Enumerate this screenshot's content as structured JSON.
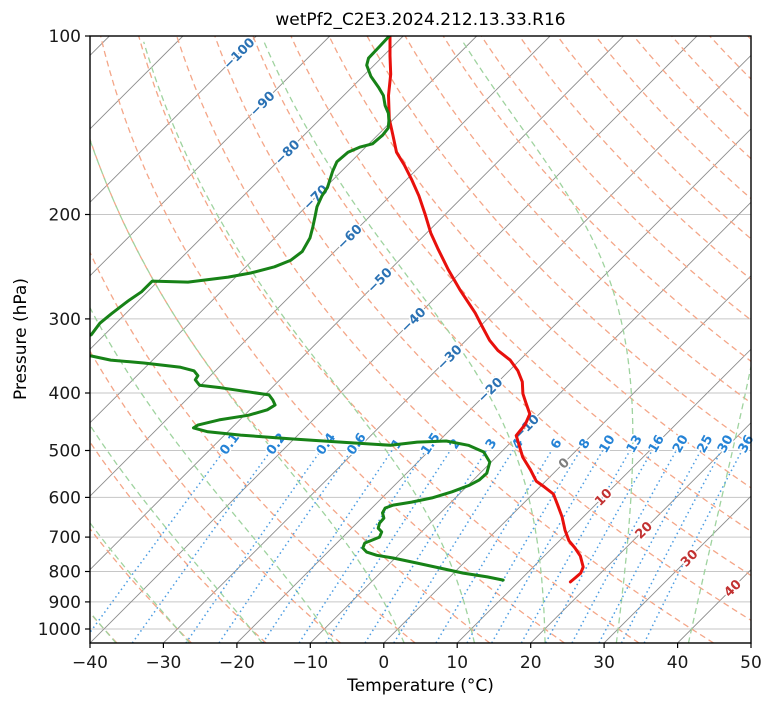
{
  "title": "wetPf2_C2E3.2024.212.13.33.R16",
  "axes": {
    "x_label": "Temperature (°C)",
    "y_label": "Pressure (hPa)",
    "x_ticks": [
      {
        "v": -40,
        "label": "−40"
      },
      {
        "v": -30,
        "label": "−30"
      },
      {
        "v": -20,
        "label": "−20"
      },
      {
        "v": -10,
        "label": "−10"
      },
      {
        "v": 0,
        "label": "0"
      },
      {
        "v": 10,
        "label": "10"
      },
      {
        "v": 20,
        "label": "20"
      },
      {
        "v": 30,
        "label": "30"
      },
      {
        "v": 40,
        "label": "40"
      },
      {
        "v": 50,
        "label": "50"
      }
    ],
    "y_ticks": [
      {
        "v": 100,
        "label": "100"
      },
      {
        "v": 200,
        "label": "200"
      },
      {
        "v": 300,
        "label": "300"
      },
      {
        "v": 400,
        "label": "400"
      },
      {
        "v": 500,
        "label": "500"
      },
      {
        "v": 600,
        "label": "600"
      },
      {
        "v": 700,
        "label": "700"
      },
      {
        "v": 800,
        "label": "800"
      },
      {
        "v": 900,
        "label": "900"
      },
      {
        "v": 1000,
        "label": "1000"
      }
    ]
  },
  "colors": {
    "temperature_line": "#e8100c",
    "dewpoint_line": "#178217",
    "isotherm_line": "#8c8c8c",
    "pressure_grid": "#c6c6c6",
    "dry_adiabat": "#f4a688",
    "moist_adiabat": "#9fd39f",
    "mixing_ratio_line": "#4b9ce2",
    "mixing_ratio_label": "#2583d6",
    "isotherm_label_cold": "#2b72b4",
    "isotherm_label_zero": "#7f7f7f",
    "isotherm_label_warm": "#c23232",
    "spine": "#000000",
    "tick_text": "#1a1a1a"
  },
  "chart_data": {
    "type": "line",
    "variant": "skew-T log-P thermodynamic diagram",
    "title": "wetPf2_C2E3.2024.212.13.33.R16",
    "xlabel": "Temperature (°C)",
    "ylabel": "Pressure (hPa)",
    "x_axis": {
      "min_c": -40,
      "max_c": 50,
      "tick_step_c": 10
    },
    "y_axis": {
      "scale": "log",
      "top_hpa": 100,
      "bottom_hpa": 1056,
      "ticks_hpa": [
        100,
        200,
        300,
        400,
        500,
        600,
        700,
        800,
        900,
        1000
      ]
    },
    "skew_deg": 45,
    "grid": true,
    "legend_position": "none",
    "background_lines": {
      "isotherms_c": {
        "min": -120,
        "max": 50,
        "step": 10
      },
      "dry_adiabats_theta_c": {
        "min": -40,
        "max": 190,
        "step": 10
      },
      "moist_adiabats_thetaw_c": {
        "min": -40,
        "max": 50,
        "step": 10
      },
      "mixing_ratio_g_kg": [
        0.1,
        0.2,
        0.4,
        0.6,
        1,
        1.5,
        2,
        3,
        4,
        6,
        8,
        10,
        13,
        16,
        20,
        25,
        30,
        36
      ],
      "mixing_ratio_top_hpa": 500
    },
    "line_labels": {
      "mixing_labels_at_hpa": 487,
      "isotherm_labels": [
        {
          "t_c": -100,
          "at_hpa": 107
        },
        {
          "t_c": -90,
          "at_hpa": 130
        },
        {
          "t_c": -80,
          "at_hpa": 157
        },
        {
          "t_c": -70,
          "at_hpa": 187
        },
        {
          "t_c": -60,
          "at_hpa": 218
        },
        {
          "t_c": -50,
          "at_hpa": 258
        },
        {
          "t_c": -40,
          "at_hpa": 301
        },
        {
          "t_c": -30,
          "at_hpa": 348
        },
        {
          "t_c": -20,
          "at_hpa": 395
        },
        {
          "t_c": -10,
          "at_hpa": 456
        },
        {
          "t_c": 0,
          "at_hpa": 525
        },
        {
          "t_c": 10,
          "at_hpa": 599
        },
        {
          "t_c": 20,
          "at_hpa": 681
        },
        {
          "t_c": 30,
          "at_hpa": 759
        },
        {
          "t_c": 40,
          "at_hpa": 853
        }
      ]
    },
    "series": [
      {
        "name": "temperature",
        "color": "#e8100c",
        "points_hpa_c": [
          [
            100,
            -81.8
          ],
          [
            108,
            -79.1
          ],
          [
            116,
            -76.5
          ],
          [
            126,
            -73.9
          ],
          [
            138,
            -70.6
          ],
          [
            147,
            -67.9
          ],
          [
            157,
            -65.1
          ],
          [
            165,
            -62.3
          ],
          [
            175,
            -59.2
          ],
          [
            186,
            -56.1
          ],
          [
            200,
            -52.7
          ],
          [
            215,
            -49.4
          ],
          [
            228,
            -46.4
          ],
          [
            248,
            -42.0
          ],
          [
            268,
            -37.7
          ],
          [
            293,
            -32.5
          ],
          [
            310,
            -29.5
          ],
          [
            326,
            -26.8
          ],
          [
            339,
            -24.3
          ],
          [
            352,
            -21.3
          ],
          [
            367,
            -18.8
          ],
          [
            383,
            -16.7
          ],
          [
            401,
            -15.0
          ],
          [
            416,
            -13.3
          ],
          [
            434,
            -11.3
          ],
          [
            452,
            -10.5
          ],
          [
            472,
            -10.2
          ],
          [
            491,
            -8.4
          ],
          [
            513,
            -6.4
          ],
          [
            539,
            -3.6
          ],
          [
            563,
            -1.3
          ],
          [
            576,
            0.6
          ],
          [
            592,
            2.8
          ],
          [
            618,
            4.9
          ],
          [
            647,
            7.1
          ],
          [
            681,
            9.3
          ],
          [
            710,
            11.3
          ],
          [
            730,
            13.1
          ],
          [
            753,
            14.9
          ],
          [
            786,
            16.8
          ],
          [
            805,
            17.3
          ],
          [
            820,
            17.2
          ],
          [
            833,
            17.1
          ]
        ]
      },
      {
        "name": "dew_point",
        "color": "#178217",
        "points_hpa_c": [
          [
            100,
            -81.9
          ],
          [
            104,
            -81.8
          ],
          [
            109,
            -81.7
          ],
          [
            112,
            -81.0
          ],
          [
            117,
            -78.9
          ],
          [
            122,
            -76.4
          ],
          [
            126,
            -74.6
          ],
          [
            131,
            -73.0
          ],
          [
            135,
            -71.5
          ],
          [
            139,
            -70.4
          ],
          [
            143,
            -69.5
          ],
          [
            147,
            -69.3
          ],
          [
            152,
            -69.5
          ],
          [
            154,
            -70.8
          ],
          [
            157,
            -71.7
          ],
          [
            163,
            -71.9
          ],
          [
            169,
            -71.2
          ],
          [
            174,
            -70.5
          ],
          [
            180,
            -69.7
          ],
          [
            186,
            -69.3
          ],
          [
            194,
            -68.5
          ],
          [
            201,
            -67.5
          ],
          [
            210,
            -66.3
          ],
          [
            219,
            -65.2
          ],
          [
            231,
            -64.4
          ],
          [
            239,
            -64.8
          ],
          [
            245,
            -66.1
          ],
          [
            251,
            -68.5
          ],
          [
            255,
            -71.0
          ],
          [
            260,
            -75.8
          ],
          [
            259,
            -80.8
          ],
          [
            270,
            -80.8
          ],
          [
            280,
            -81.4
          ],
          [
            294,
            -81.9
          ],
          [
            305,
            -82.2
          ],
          [
            319,
            -81.8
          ],
          [
            335,
            -84.5
          ],
          [
            346,
            -79.1
          ],
          [
            352,
            -75.7
          ],
          [
            356,
            -70.8
          ],
          [
            362,
            -65.2
          ],
          [
            367,
            -62.9
          ],
          [
            374,
            -61.7
          ],
          [
            380,
            -61.5
          ],
          [
            388,
            -60.2
          ],
          [
            392,
            -56.9
          ],
          [
            398,
            -52.8
          ],
          [
            403,
            -49.4
          ],
          [
            411,
            -48.2
          ],
          [
            419,
            -47.2
          ],
          [
            427,
            -47.6
          ],
          [
            436,
            -49.4
          ],
          [
            444,
            -52.8
          ],
          [
            453,
            -55.0
          ],
          [
            458,
            -55.2
          ],
          [
            465,
            -52.7
          ],
          [
            471,
            -47.8
          ],
          [
            478,
            -40.4
          ],
          [
            484,
            -33.2
          ],
          [
            490,
            -26.0
          ],
          [
            484,
            -22.8
          ],
          [
            482,
            -19.0
          ],
          [
            490,
            -15.4
          ],
          [
            503,
            -12.4
          ],
          [
            523,
            -10.2
          ],
          [
            546,
            -9.1
          ],
          [
            561,
            -9.2
          ],
          [
            572,
            -9.8
          ],
          [
            587,
            -11.3
          ],
          [
            601,
            -13.2
          ],
          [
            611,
            -15.4
          ],
          [
            618,
            -17.5
          ],
          [
            625,
            -18.2
          ],
          [
            637,
            -17.9
          ],
          [
            650,
            -17.0
          ],
          [
            663,
            -16.9
          ],
          [
            676,
            -16.4
          ],
          [
            686,
            -15.4
          ],
          [
            700,
            -15.0
          ],
          [
            708,
            -15.6
          ],
          [
            716,
            -16.2
          ],
          [
            730,
            -15.8
          ],
          [
            742,
            -14.7
          ],
          [
            751,
            -12.9
          ],
          [
            759,
            -10.3
          ],
          [
            774,
            -6.4
          ],
          [
            789,
            -2.6
          ],
          [
            805,
            1.3
          ],
          [
            817,
            5.1
          ],
          [
            827,
            7.7
          ]
        ]
      }
    ]
  }
}
